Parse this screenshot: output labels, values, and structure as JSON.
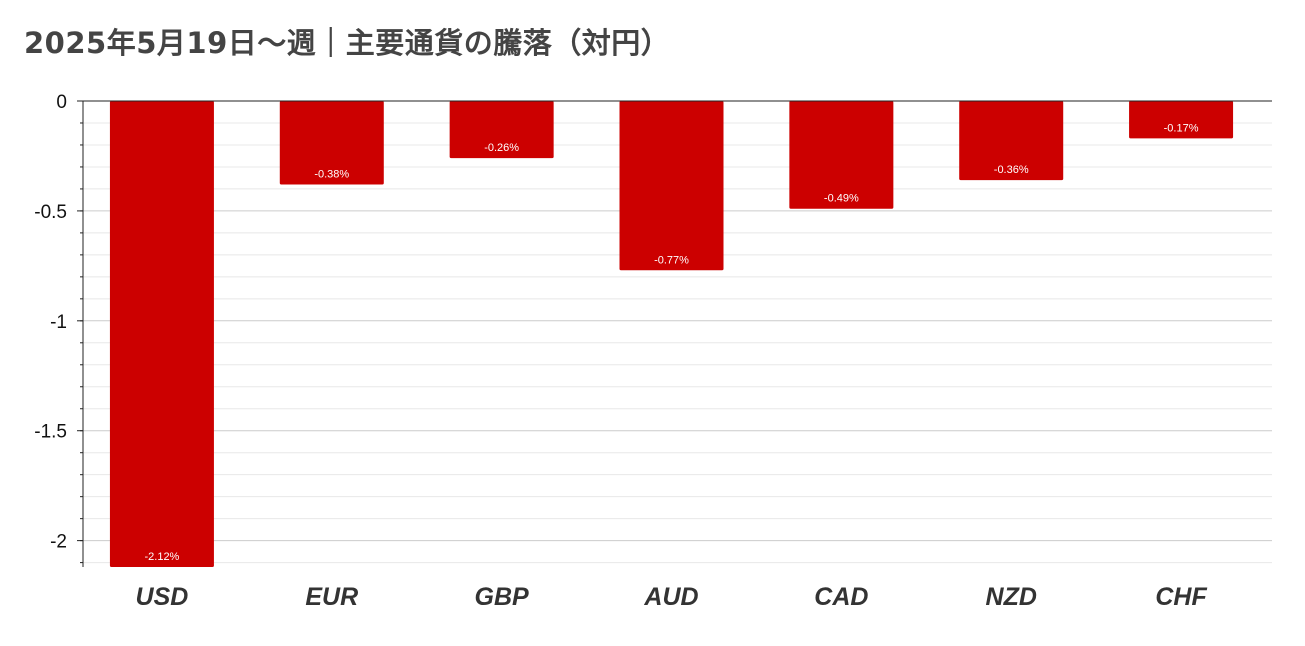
{
  "title": "2025年5月19日～週｜主要通貨の騰落（対円）",
  "chart_data": {
    "type": "bar",
    "title": "2025年5月19日～週｜主要通貨の騰落（対円）",
    "categories": [
      "USD",
      "EUR",
      "GBP",
      "AUD",
      "CAD",
      "NZD",
      "CHF"
    ],
    "values": [
      -2.12,
      -0.38,
      -0.26,
      -0.77,
      -0.49,
      -0.36,
      -0.17
    ],
    "data_labels": [
      "-2.12%",
      "-0.38%",
      "-0.26%",
      "-0.77%",
      "-0.49%",
      "-0.36%",
      "-0.17%"
    ],
    "ylim": [
      -2.12,
      0
    ],
    "yticks": [
      0,
      -0.5,
      -1,
      -1.5,
      -2
    ],
    "ytick_labels": [
      "0",
      "-0.5",
      "-1",
      "-1.5",
      "-2"
    ],
    "xlabel": "",
    "ylabel": "",
    "grid": true,
    "legend": "none",
    "colors": {
      "bar": "#cc0000",
      "major_grid": "#cccccc",
      "minor_grid": "#e8e8e8",
      "axis": "#222222",
      "title": "#444444"
    }
  }
}
